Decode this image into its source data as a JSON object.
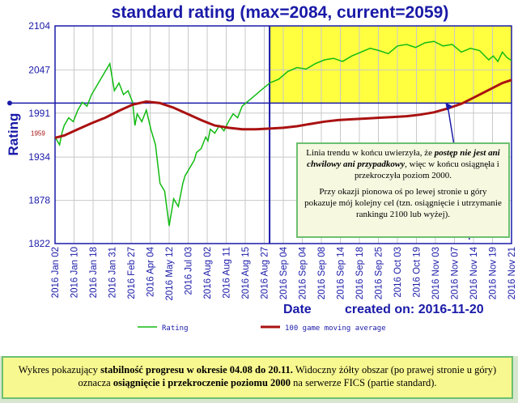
{
  "chart_data": {
    "type": "line",
    "title": "standard rating (max=2084, current=2059)",
    "xlabel": "Date",
    "ylabel": "Rating",
    "created_label": "created on: 2016-11-20",
    "y_ticks": [
      1822,
      1878,
      1934,
      1991,
      2047,
      2104
    ],
    "ylim": [
      1822,
      2104
    ],
    "start_marker": "1959",
    "x_tick_labels": [
      "2016 Jan 02",
      "2016 Jan 10",
      "2016 Jan 18",
      "2016 Jan 31",
      "2016 Feb 27",
      "2016 Apr 04",
      "2016 May 12",
      "2016 Jul 03",
      "2016 Aug 02",
      "2016 Aug 11",
      "2016 Aug 15",
      "2016 Aug 27",
      "2016 Sep 04",
      "2016 Sep 04",
      "2016 Sep 08",
      "2016 Sep 14",
      "2016 Sep 18",
      "2016 Sep 25",
      "2016 Oct 03",
      "2016 Oct 19",
      "2016 Nov 03",
      "2016 Nov 07",
      "2016 Nov 14",
      "2016 Nov 19",
      "2016 Nov 21"
    ],
    "highlight": {
      "from_index": 0.47,
      "y_from": 2004,
      "y_to": 2104,
      "color": "#ffff40"
    },
    "reference_line": 2004,
    "series": [
      {
        "name": "Rating",
        "color": "#11bb11",
        "x": [
          0,
          0.01,
          0.015,
          0.02,
          0.03,
          0.04,
          0.05,
          0.06,
          0.07,
          0.08,
          0.09,
          0.1,
          0.11,
          0.12,
          0.13,
          0.14,
          0.15,
          0.16,
          0.17,
          0.175,
          0.18,
          0.19,
          0.2,
          0.21,
          0.22,
          0.23,
          0.24,
          0.25,
          0.26,
          0.27,
          0.28,
          0.285,
          0.29,
          0.3,
          0.305,
          0.31,
          0.32,
          0.33,
          0.335,
          0.34,
          0.35,
          0.36,
          0.37,
          0.38,
          0.39,
          0.4,
          0.41,
          0.42,
          0.43,
          0.44,
          0.45,
          0.46,
          0.47,
          0.49,
          0.51,
          0.53,
          0.55,
          0.57,
          0.59,
          0.61,
          0.63,
          0.65,
          0.67,
          0.69,
          0.71,
          0.73,
          0.75,
          0.77,
          0.79,
          0.81,
          0.83,
          0.85,
          0.87,
          0.89,
          0.91,
          0.93,
          0.95,
          0.96,
          0.97,
          0.98,
          0.99,
          1.0
        ],
        "y": [
          1960,
          1950,
          1965,
          1975,
          1985,
          1980,
          1995,
          2005,
          2000,
          2015,
          2025,
          2035,
          2045,
          2055,
          2020,
          2030,
          2015,
          2020,
          2005,
          1975,
          1990,
          1980,
          1995,
          1970,
          1950,
          1900,
          1890,
          1845,
          1880,
          1870,
          1900,
          1910,
          1915,
          1925,
          1930,
          1940,
          1945,
          1960,
          1955,
          1970,
          1965,
          1975,
          1968,
          1980,
          1990,
          1985,
          2000,
          2005,
          2010,
          2015,
          2020,
          2025,
          2030,
          2035,
          2045,
          2050,
          2048,
          2055,
          2060,
          2062,
          2058,
          2065,
          2070,
          2075,
          2072,
          2068,
          2078,
          2080,
          2076,
          2082,
          2084,
          2078,
          2080,
          2070,
          2075,
          2072,
          2060,
          2065,
          2058,
          2070,
          2063,
          2059
        ]
      },
      {
        "name": "100 game moving average",
        "color": "#aa1111",
        "x": [
          0,
          0.02,
          0.05,
          0.08,
          0.11,
          0.14,
          0.17,
          0.2,
          0.23,
          0.26,
          0.29,
          0.32,
          0.35,
          0.38,
          0.41,
          0.44,
          0.47,
          0.5,
          0.53,
          0.56,
          0.59,
          0.62,
          0.65,
          0.68,
          0.71,
          0.74,
          0.77,
          0.8,
          0.83,
          0.86,
          0.89,
          0.92,
          0.95,
          0.98,
          1.0
        ],
        "y": [
          1959,
          1962,
          1970,
          1978,
          1985,
          1994,
          2002,
          2006,
          2004,
          1998,
          1990,
          1982,
          1975,
          1972,
          1970,
          1970,
          1971,
          1972,
          1974,
          1977,
          1980,
          1982,
          1983,
          1984,
          1985,
          1986,
          1987,
          1989,
          1992,
          1997,
          2003,
          2012,
          2021,
          2030,
          2034
        ]
      }
    ]
  },
  "note": {
    "p1_a": "Linia trendu w końcu uwierzyła, że ",
    "p1_b": "postęp nie jest ani chwilowy ani przypadkowy",
    "p1_c": ", więc w końcu osiągnęła i przekroczyła poziom 2000.",
    "p2": "Przy okazji pionowa oś po lewej stronie u góry pokazuje mój kolejny cel (tzn. osiągnięcie i utrzymanie rankingu 2100 lub wyżej)."
  },
  "caption": {
    "t1": "Wykres pokazujący ",
    "b1": "stabilność progresu w okresie 04.08 do 20.11.",
    "t2": " Widoczny żółty obszar (po prawej stronie u góry) oznacza ",
    "b2": "osiągnięcie i przekroczenie poziomu 2000",
    "t3": " na serwerze FICS (partie standard)."
  }
}
